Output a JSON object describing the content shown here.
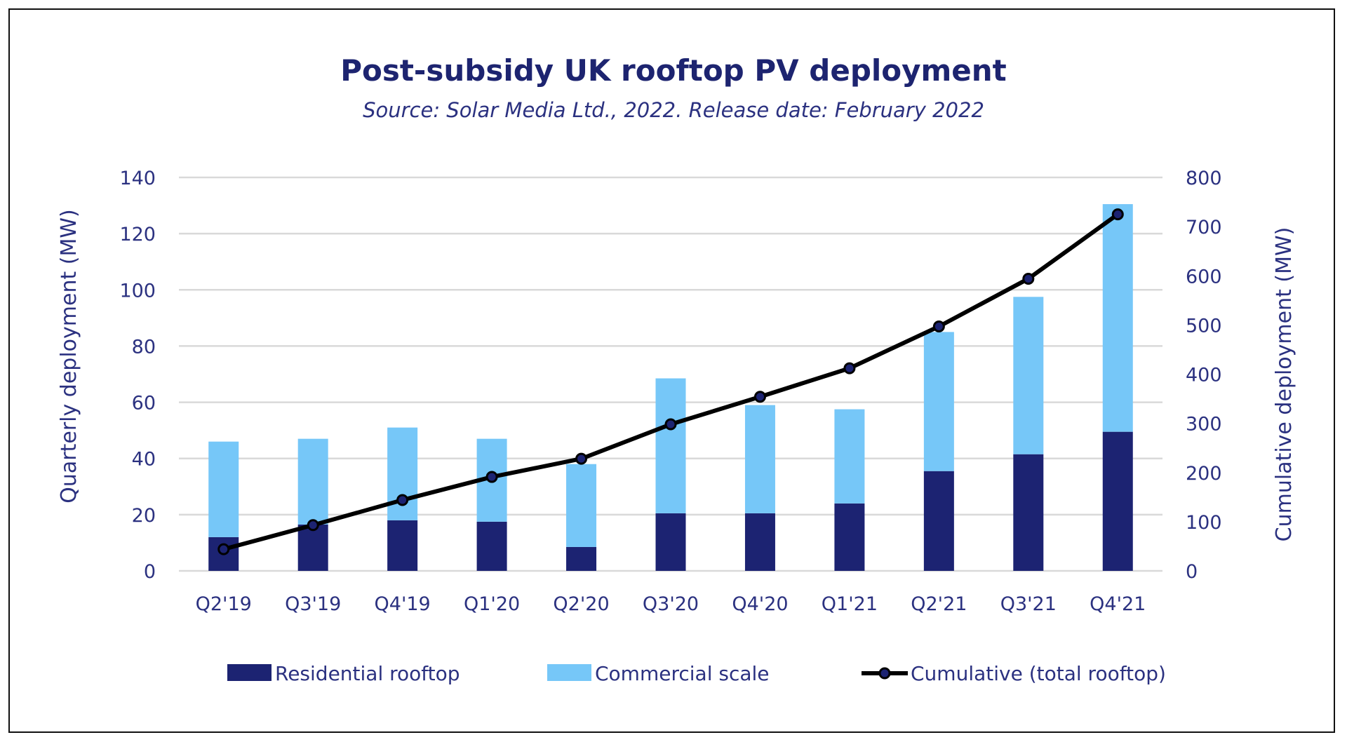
{
  "chart_data": {
    "type": "bar",
    "title": "Post-subsidy UK rooftop PV deployment",
    "subtitle": "Source: Solar Media Ltd., 2022. Release date: February 2022",
    "ylabel": "Quarterly deployment (MW)",
    "y2label": "Cumulative deployment (MW)",
    "ylim": [
      0,
      140
    ],
    "y2lim": [
      0,
      800
    ],
    "yticks": [
      0,
      20,
      40,
      60,
      80,
      100,
      120,
      140
    ],
    "y2ticks": [
      0,
      100,
      200,
      300,
      400,
      500,
      600,
      700,
      800
    ],
    "grid": true,
    "legend_position": "bottom",
    "categories": [
      "Q2'19",
      "Q3'19",
      "Q4'19",
      "Q1'20",
      "Q2'20",
      "Q3'20",
      "Q4'20",
      "Q1'21",
      "Q2'21",
      "Q3'21",
      "Q4'21"
    ],
    "series": [
      {
        "name": "Residential rooftop",
        "kind": "stacked-bar",
        "axis": "left",
        "color": "#1c2372",
        "values": [
          12,
          16.5,
          18,
          17.5,
          8.5,
          20.5,
          20.5,
          24,
          35.5,
          41.5,
          49.5
        ]
      },
      {
        "name": "Commercial scale",
        "kind": "stacked-bar",
        "axis": "left",
        "color": "#76c7f8",
        "values": [
          34,
          30.5,
          33,
          29.5,
          29.5,
          48,
          38.5,
          33.5,
          49.5,
          56,
          81
        ]
      },
      {
        "name": "Cumulative (total rooftop)",
        "kind": "line",
        "axis": "right",
        "color": "#000000",
        "marker_color": "#1c2372",
        "values": [
          44,
          93,
          144,
          191,
          228,
          298,
          354,
          412,
          497,
          594,
          725
        ]
      }
    ]
  }
}
